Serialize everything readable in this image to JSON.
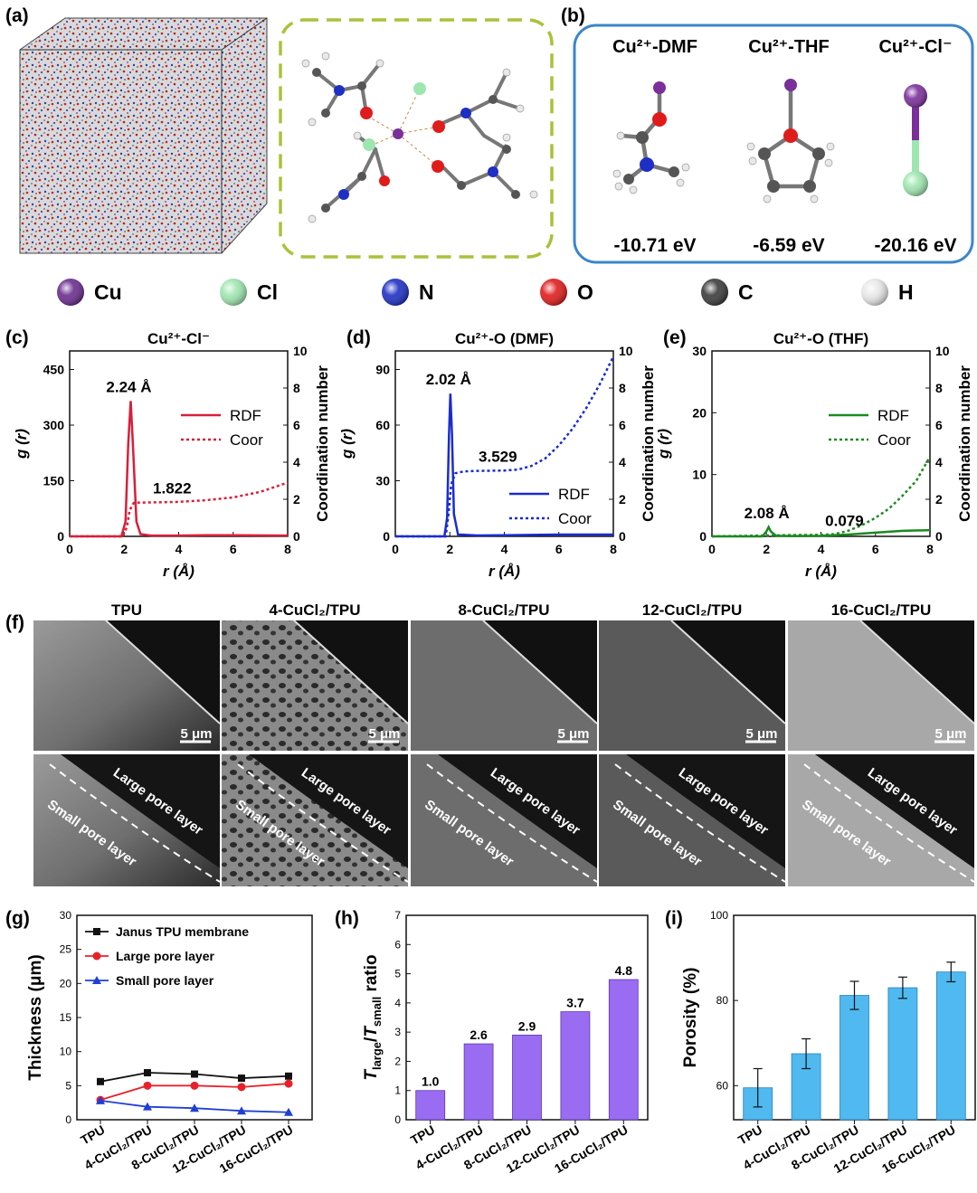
{
  "panels": {
    "a": "(a)",
    "b": "(b)",
    "c": "(c)",
    "d": "(d)",
    "e": "(e)",
    "f": "(f)",
    "g": "(g)",
    "h": "(h)",
    "i": "(i)"
  },
  "complexes": [
    {
      "name": "Cu²⁺-DMF",
      "energy": "-10.71 eV"
    },
    {
      "name": "Cu²⁺-THF",
      "energy": "-6.59 eV"
    },
    {
      "name": "Cu²⁺-Cl⁻",
      "energy": "-20.16 eV"
    }
  ],
  "atom_legend": [
    {
      "symbol": "Cu",
      "color": "#6a2c8e"
    },
    {
      "symbol": "Cl",
      "color": "#9ee6b0"
    },
    {
      "symbol": "N",
      "color": "#1d2fc4"
    },
    {
      "symbol": "O",
      "color": "#e01b1b"
    },
    {
      "symbol": "C",
      "color": "#3a3a3a"
    },
    {
      "symbol": "H",
      "color": "#e8e8e8"
    }
  ],
  "rdf_axes": {
    "xlabel": "r (Å)",
    "ylabel": "g (r)",
    "y2label": "Coordination number",
    "x_ticks": [
      "0",
      "2",
      "4",
      "6",
      "8"
    ],
    "y2_ticks": [
      "0",
      "2",
      "4",
      "6",
      "8",
      "10"
    ],
    "rdf_label": "RDF",
    "coor_label": "Coor"
  },
  "sem": {
    "columns": [
      "TPU",
      "4-CuCl₂/TPU",
      "8-CuCl₂/TPU",
      "12-CuCl₂/TPU",
      "16-CuCl₂/TPU"
    ],
    "scale": "5 μm",
    "large_label": "Large pore layer",
    "small_label": "Small pore layer"
  },
  "chart_data": [
    {
      "id": "c",
      "type": "line",
      "title": "Cu²⁺-Cl⁻",
      "color": "#d81f3a",
      "xlim": [
        0,
        8
      ],
      "ylim": [
        0,
        500
      ],
      "y_ticks": [
        "0",
        "150",
        "300",
        "450"
      ],
      "y2lim": [
        0,
        10
      ],
      "peak": {
        "x": 2.24,
        "y": 365,
        "label": "2.24 Å"
      },
      "coor_value": {
        "x": 2.5,
        "y": 1.822,
        "label": "1.822"
      },
      "rdf": {
        "x": [
          0,
          1.9,
          2.05,
          2.15,
          2.24,
          2.32,
          2.45,
          2.6,
          3,
          4,
          5,
          6,
          8
        ],
        "y": [
          0,
          0,
          40,
          250,
          365,
          250,
          40,
          6,
          2,
          2,
          3,
          3,
          2
        ]
      },
      "coor": {
        "x": [
          0,
          1.95,
          2.1,
          2.2,
          2.35,
          2.5,
          3,
          4,
          5,
          6,
          7,
          8
        ],
        "y": [
          0,
          0,
          0.5,
          1.4,
          1.8,
          1.82,
          1.83,
          1.86,
          1.95,
          2.1,
          2.4,
          2.9
        ]
      }
    },
    {
      "id": "d",
      "type": "line",
      "title": "Cu²⁺-O (DMF)",
      "color": "#1a2ccf",
      "xlim": [
        0,
        8
      ],
      "ylim": [
        0,
        100
      ],
      "y_ticks": [
        "0",
        "30",
        "60",
        "90"
      ],
      "y2lim": [
        0,
        10
      ],
      "peak": {
        "x": 2.02,
        "y": 77,
        "label": "2.02 Å"
      },
      "coor_value": {
        "x": 2.5,
        "y": 3.529,
        "label": "3.529"
      },
      "rdf": {
        "x": [
          0,
          1.8,
          1.9,
          1.97,
          2.02,
          2.08,
          2.15,
          2.3,
          3,
          4,
          5,
          6,
          8
        ],
        "y": [
          0,
          0,
          10,
          55,
          77,
          55,
          12,
          1,
          0.5,
          0.6,
          0.8,
          1,
          1
        ]
      },
      "coor": {
        "x": [
          0,
          1.85,
          1.95,
          2.05,
          2.2,
          2.5,
          3,
          4,
          4.5,
          5,
          5.5,
          6,
          6.5,
          7,
          7.5,
          8
        ],
        "y": [
          0,
          0,
          1.2,
          2.8,
          3.4,
          3.5,
          3.53,
          3.55,
          3.6,
          3.8,
          4.2,
          4.9,
          5.8,
          6.9,
          8.2,
          9.7
        ]
      }
    },
    {
      "id": "e",
      "type": "line",
      "title": "Cu²⁺-O (THF)",
      "color": "#1a8a1f",
      "xlim": [
        0,
        8
      ],
      "ylim": [
        0,
        30
      ],
      "y_ticks": [
        "0",
        "10",
        "20",
        "30"
      ],
      "y2lim": [
        0,
        10
      ],
      "peak": {
        "x": 2.08,
        "y": 1.5,
        "label": "2.08 Å"
      },
      "coor_value": {
        "x": 3.6,
        "y": 0.079,
        "label": "0.079"
      },
      "rdf": {
        "x": [
          0,
          1.85,
          2.0,
          2.08,
          2.16,
          2.35,
          3,
          4,
          5,
          6,
          7,
          8
        ],
        "y": [
          0,
          0,
          0.8,
          1.5,
          0.8,
          0.1,
          0.05,
          0.1,
          0.3,
          0.6,
          0.9,
          1.0
        ]
      },
      "coor": {
        "x": [
          0,
          2.2,
          3,
          4,
          4.5,
          5,
          5.5,
          6,
          6.5,
          7,
          7.5,
          8
        ],
        "y": [
          0,
          0.05,
          0.07,
          0.08,
          0.12,
          0.3,
          0.6,
          1.0,
          1.5,
          2.2,
          3.0,
          4.3
        ]
      }
    },
    {
      "id": "g",
      "type": "line",
      "ylabel": "Thickness (μm)",
      "ylim": [
        0,
        30
      ],
      "y_ticks": [
        "0",
        "5",
        "10",
        "15",
        "20",
        "25",
        "30"
      ],
      "categories": [
        "TPU",
        "4-CuCl₂/TPU",
        "8-CuCl₂/TPU",
        "12-CuCl₂/TPU",
        "16-CuCl₂/TPU"
      ],
      "series": [
        {
          "name": "Janus TPU membrane",
          "color": "#111111",
          "marker": "square",
          "values": [
            5.6,
            6.9,
            6.7,
            6.1,
            6.4
          ]
        },
        {
          "name": "Large pore layer",
          "color": "#e8202a",
          "marker": "circle",
          "values": [
            2.9,
            5.0,
            5.0,
            4.8,
            5.3
          ]
        },
        {
          "name": "Small pore layer",
          "color": "#1f3fd6",
          "marker": "triangle",
          "values": [
            2.8,
            1.9,
            1.7,
            1.3,
            1.1
          ]
        }
      ]
    },
    {
      "id": "h",
      "type": "bar",
      "ylabel": "T_large/T_small ratio",
      "ylim": [
        0,
        7
      ],
      "y_ticks": [
        "0",
        "1",
        "2",
        "3",
        "4",
        "5",
        "6",
        "7"
      ],
      "color": "#9a6cf2",
      "categories": [
        "TPU",
        "4-CuCl₂/TPU",
        "8-CuCl₂/TPU",
        "12-CuCl₂/TPU",
        "16-CuCl₂/TPU"
      ],
      "values": [
        1.0,
        2.6,
        2.9,
        3.7,
        4.8
      ],
      "labels": [
        "1.0",
        "2.6",
        "2.9",
        "3.7",
        "4.8"
      ]
    },
    {
      "id": "i",
      "type": "bar",
      "ylabel": "Porosity (%)",
      "ylim": [
        52,
        100
      ],
      "y_ticks": [
        "60",
        "80",
        "100"
      ],
      "color": "#4fb9f0",
      "categories": [
        "TPU",
        "4-CuCl₂/TPU",
        "8-CuCl₂/TPU",
        "12-CuCl₂/TPU",
        "16-CuCl₂/TPU"
      ],
      "values": [
        59.5,
        67.5,
        81.2,
        83.0,
        86.7
      ],
      "errors": [
        4.5,
        3.5,
        3.3,
        2.5,
        2.3
      ]
    }
  ]
}
